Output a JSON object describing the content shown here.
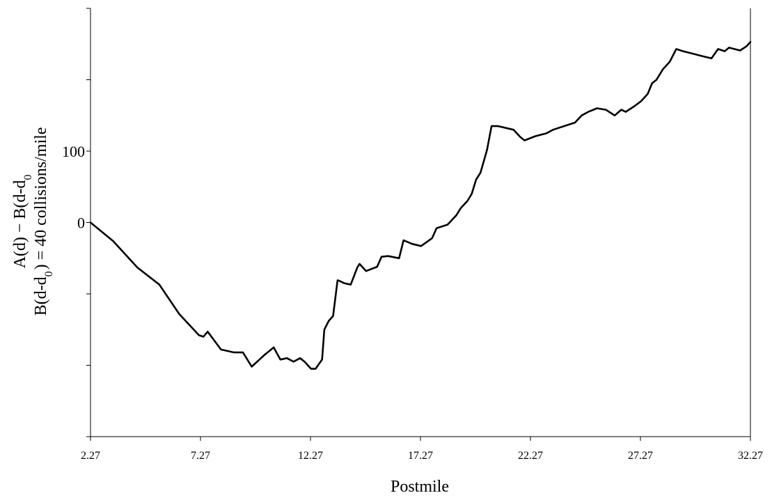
{
  "chart_data": {
    "type": "line",
    "title": "",
    "xlabel": "Postmile",
    "ylabel_line1": "A(d) − B(d-d",
    "ylabel_line1_sub": "0",
    "ylabel_line2_pre": "B(d-d",
    "ylabel_line2_sub": "0",
    "ylabel_line2_post": ") = 40 collisions/mile",
    "xlim": [
      2.27,
      32.27
    ],
    "ylim": [
      -300,
      300
    ],
    "x_ticks": [
      2.27,
      7.27,
      12.27,
      17.27,
      22.27,
      27.27,
      32.27
    ],
    "x_tick_labels": [
      "2.27",
      "7.27",
      "12.27",
      "17.27",
      "22.27",
      "27.27",
      "32.27"
    ],
    "y_ticks": [
      -300,
      -200,
      -100,
      0,
      100,
      200,
      300
    ],
    "y_tick_labels": [
      "",
      "",
      "",
      "0",
      "100",
      "",
      ""
    ],
    "grid": false,
    "legend": "none",
    "series": [
      {
        "color": "#000000",
        "x": [
          2.27,
          3.3,
          4.4,
          5.4,
          6.3,
          7.2,
          7.4,
          7.6,
          8.2,
          8.8,
          9.2,
          9.6,
          10.2,
          10.6,
          10.9,
          11.2,
          11.5,
          11.8,
          12.0,
          12.3,
          12.5,
          12.8,
          12.9,
          13.1,
          13.3,
          13.5,
          13.6,
          13.8,
          14.1,
          14.4,
          14.5,
          14.8,
          15.3,
          15.5,
          15.8,
          16.3,
          16.5,
          16.9,
          17.3,
          17.8,
          18.0,
          18.5,
          18.9,
          19.1,
          19.4,
          19.6,
          19.8,
          20.0,
          20.3,
          20.5,
          20.8,
          21.5,
          21.8,
          22.0,
          22.5,
          23.0,
          23.3,
          23.8,
          24.3,
          24.6,
          24.9,
          25.3,
          25.7,
          26.1,
          26.4,
          26.6,
          27.0,
          27.3,
          27.6,
          27.8,
          28.0,
          28.3,
          28.6,
          28.9,
          29.2,
          29.6,
          30.1,
          30.5,
          30.8,
          31.1,
          31.3,
          31.8,
          32.1,
          32.27
        ],
        "y": [
          0,
          -26,
          -63,
          -87,
          -128,
          -158,
          -160,
          -153,
          -178,
          -182,
          -182,
          -202,
          -185,
          -175,
          -192,
          -190,
          -195,
          -190,
          -195,
          -205,
          -205,
          -192,
          -150,
          -138,
          -131,
          -81,
          -82,
          -85,
          -87,
          -63,
          -58,
          -68,
          -62,
          -48,
          -47,
          -50,
          -25,
          -30,
          -33,
          -22,
          -8,
          -3,
          10,
          20,
          30,
          40,
          60,
          70,
          102,
          135,
          135,
          130,
          120,
          115,
          121,
          125,
          130,
          135,
          140,
          150,
          155,
          160,
          158,
          150,
          158,
          155,
          163,
          170,
          180,
          195,
          200,
          215,
          225,
          243,
          240,
          237,
          233,
          230,
          243,
          240,
          245,
          241,
          247,
          253
        ]
      }
    ]
  }
}
